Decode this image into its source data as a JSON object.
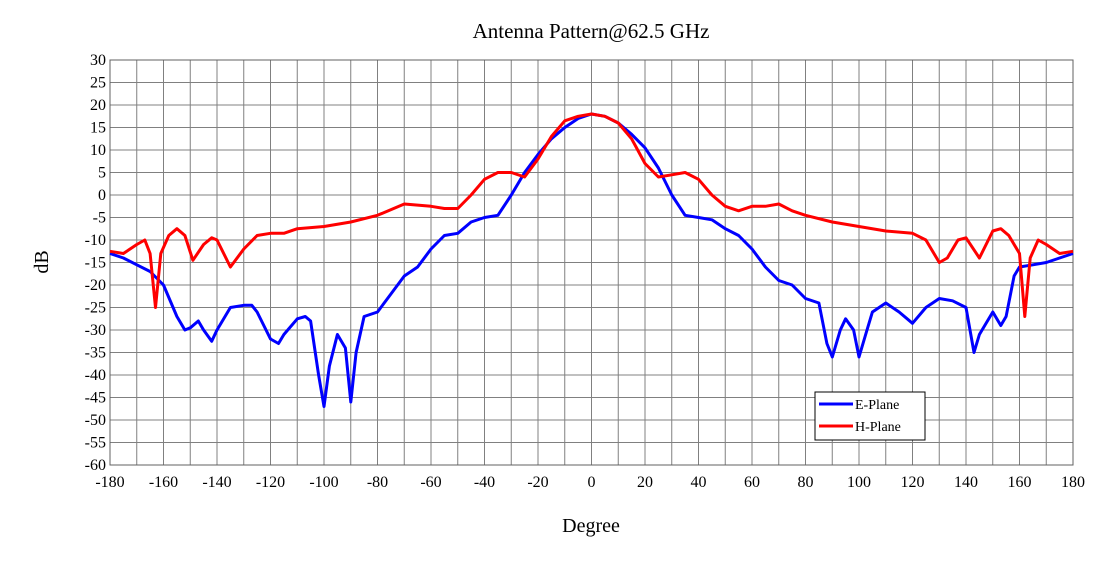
{
  "chart_data": {
    "type": "line",
    "title": "Antenna Pattern@62.5 GHz",
    "x_label": "Degree",
    "y_label": "dB",
    "xlim": [
      -180,
      180
    ],
    "xticks": [
      -180,
      -160,
      -140,
      -120,
      -100,
      -80,
      -60,
      -40,
      -20,
      0,
      20,
      40,
      60,
      80,
      100,
      120,
      140,
      160,
      180
    ],
    "ylim": [
      -60,
      30
    ],
    "yticks": [
      -60,
      -55,
      -50,
      -45,
      -40,
      -35,
      -30,
      -25,
      -20,
      -15,
      -10,
      -5,
      0,
      5,
      10,
      15,
      20,
      25,
      30
    ],
    "grid": true,
    "legend": "lower right",
    "series": [
      {
        "name": "E-Plane",
        "color": "#0000ff",
        "x": [
          -180,
          -175,
          -170,
          -165,
          -160,
          -155,
          -152,
          -150,
          -147,
          -145,
          -142,
          -140,
          -135,
          -130,
          -127,
          -125,
          -120,
          -117,
          -115,
          -110,
          -107,
          -105,
          -102,
          -100,
          -98,
          -95,
          -92,
          -90,
          -88,
          -85,
          -80,
          -75,
          -70,
          -65,
          -60,
          -55,
          -50,
          -45,
          -40,
          -35,
          -30,
          -25,
          -20,
          -15,
          -10,
          -5,
          0,
          5,
          10,
          15,
          20,
          25,
          30,
          35,
          40,
          45,
          50,
          55,
          60,
          65,
          70,
          75,
          80,
          85,
          88,
          90,
          93,
          95,
          98,
          100,
          103,
          105,
          110,
          115,
          120,
          125,
          130,
          135,
          140,
          143,
          145,
          150,
          153,
          155,
          158,
          160,
          165,
          170,
          175,
          180
        ],
        "values": [
          -13,
          -14,
          -15.5,
          -17,
          -20,
          -27,
          -30,
          -29.5,
          -28,
          -30,
          -32.5,
          -30,
          -25,
          -24.5,
          -24.5,
          -26,
          -32,
          -33,
          -31,
          -27.5,
          -27,
          -28,
          -40,
          -47,
          -38,
          -31,
          -34,
          -46,
          -35,
          -27,
          -26,
          -22,
          -18,
          -16,
          -12,
          -9,
          -8.5,
          -6,
          -5,
          -4.5,
          0,
          5,
          9,
          12.5,
          15,
          17,
          18,
          17.5,
          16,
          13.5,
          10.5,
          6,
          0,
          -4.5,
          -5,
          -5.5,
          -7.5,
          -9,
          -12,
          -16,
          -19,
          -20,
          -23,
          -24,
          -33,
          -36,
          -30,
          -27.5,
          -30,
          -36,
          -30,
          -26,
          -24,
          -26,
          -28.5,
          -25,
          -23,
          -23.5,
          -25,
          -35,
          -31,
          -26,
          -29,
          -27,
          -18,
          -16,
          -15.5,
          -15,
          -14,
          -13
        ]
      },
      {
        "name": "H-Plane",
        "color": "#ff0000",
        "x": [
          -180,
          -175,
          -170,
          -167,
          -165,
          -163,
          -161,
          -158,
          -155,
          -152,
          -149,
          -145,
          -142,
          -140,
          -135,
          -130,
          -125,
          -120,
          -115,
          -110,
          -100,
          -90,
          -80,
          -70,
          -60,
          -55,
          -50,
          -45,
          -40,
          -35,
          -30,
          -25,
          -20,
          -15,
          -10,
          -5,
          0,
          5,
          10,
          15,
          20,
          25,
          30,
          35,
          40,
          45,
          50,
          55,
          60,
          65,
          70,
          75,
          80,
          90,
          100,
          110,
          120,
          125,
          130,
          133,
          137,
          140,
          145,
          150,
          153,
          156,
          160,
          162,
          164,
          167,
          170,
          175,
          180
        ],
        "values": [
          -12.5,
          -13,
          -11,
          -10,
          -13,
          -25,
          -13,
          -9,
          -7.5,
          -9,
          -14.5,
          -11,
          -9.5,
          -10,
          -16,
          -12,
          -9,
          -8.5,
          -8.5,
          -7.5,
          -7,
          -6,
          -4.5,
          -2,
          -2.5,
          -3,
          -3,
          0,
          3.5,
          5,
          5,
          4,
          8,
          13,
          16.5,
          17.5,
          18,
          17.5,
          16,
          12.5,
          7,
          4,
          4.5,
          5,
          3.5,
          0,
          -2.5,
          -3.5,
          -2.5,
          -2.5,
          -2,
          -3.5,
          -4.5,
          -6,
          -7,
          -8,
          -8.5,
          -10,
          -15,
          -14,
          -10,
          -9.5,
          -14,
          -8,
          -7.5,
          -9,
          -13,
          -27,
          -14,
          -10,
          -11,
          -13,
          -12.5
        ]
      }
    ]
  }
}
